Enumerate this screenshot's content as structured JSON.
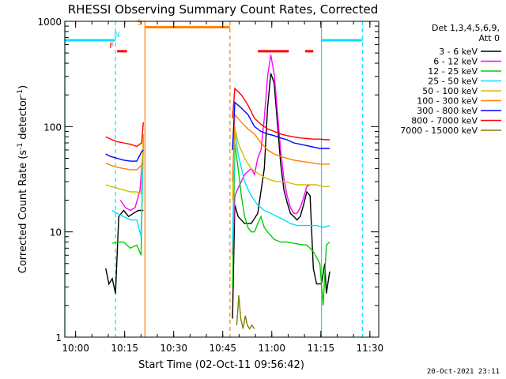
{
  "chart_data": {
    "type": "line",
    "title": "RHESSI Observing Summary Count Rates, Corrected",
    "xlabel": "Start Time (02-Oct-11 09:56:42)",
    "ylabel_main": "Corrected Count Rate (s",
    "ylabel_sup1": "-1",
    "ylabel_mid": " detector",
    "ylabel_sup2": "-1",
    "ylabel_end": ")",
    "x_unit": "minutes since 09:56:42",
    "xlim": [
      0,
      96
    ],
    "ylim": [
      1,
      1000
    ],
    "yscale": "log",
    "x_ticks": [
      {
        "pos": 3.3,
        "label": "10:00"
      },
      {
        "pos": 18.3,
        "label": "10:15"
      },
      {
        "pos": 33.3,
        "label": "10:30"
      },
      {
        "pos": 48.3,
        "label": "10:45"
      },
      {
        "pos": 63.3,
        "label": "11:00"
      },
      {
        "pos": 78.3,
        "label": "11:15"
      },
      {
        "pos": 93.3,
        "label": "11:30"
      }
    ],
    "y_ticks": [
      {
        "value": 1,
        "label": "1"
      },
      {
        "value": 10,
        "label": "10"
      },
      {
        "value": 100,
        "label": "100"
      },
      {
        "value": 1000,
        "label": "1000"
      }
    ],
    "legend_header": [
      "Det 1,3,4,5,6,9,",
      "Att 0"
    ],
    "legend_position": "right",
    "flags": [
      {
        "label": "N",
        "color": "#00e0ff",
        "segments": [
          [
            0,
            15.5
          ],
          [
            78.5,
            91
          ]
        ],
        "y_value": 660
      },
      {
        "label": "S",
        "color": "#ff8000",
        "segments": [
          [
            24.5,
            50.5
          ]
        ],
        "y_value": 880
      },
      {
        "label": "F",
        "color": "#ff0000",
        "segments": [
          [
            16,
            19
          ],
          [
            59,
            68.5
          ],
          [
            73.5,
            76
          ]
        ],
        "y_value": 520
      }
    ],
    "vlines": [
      {
        "x": 0,
        "color": "#00e0ff",
        "style": "solid"
      },
      {
        "x": 15.5,
        "color": "#00e0ff",
        "style": "dashed"
      },
      {
        "x": 24.5,
        "color": "#ff8000",
        "style": "solid"
      },
      {
        "x": 50.5,
        "color": "#ff8000",
        "style": "dashed"
      },
      {
        "x": 78.5,
        "color": "#00e0ff",
        "style": "solid"
      },
      {
        "x": 91,
        "color": "#00e0ff",
        "style": "dashed"
      }
    ],
    "series": [
      {
        "name": "3 - 6 keV",
        "color": "#000000",
        "values": [
          [
            12.5,
            4.5
          ],
          [
            13.5,
            3.2
          ],
          [
            14.5,
            3.6
          ],
          [
            15.5,
            2.6
          ],
          [
            16.5,
            14
          ],
          [
            18,
            16
          ],
          [
            19.5,
            14
          ],
          [
            21,
            15
          ],
          [
            22.5,
            16
          ],
          [
            24,
            16
          ],
          [
            51.3,
            1.5
          ],
          [
            52,
            18
          ],
          [
            53,
            14
          ],
          [
            55,
            12
          ],
          [
            57,
            12
          ],
          [
            59,
            15
          ],
          [
            61,
            40
          ],
          [
            62,
            150
          ],
          [
            63,
            320
          ],
          [
            64,
            260
          ],
          [
            65,
            110
          ],
          [
            66,
            45
          ],
          [
            67,
            25
          ],
          [
            68,
            19
          ],
          [
            69,
            15
          ],
          [
            70,
            14
          ],
          [
            71,
            13
          ],
          [
            72,
            14
          ],
          [
            73,
            18
          ],
          [
            74,
            24
          ],
          [
            75,
            22
          ],
          [
            76,
            4.5
          ],
          [
            77,
            3.2
          ],
          [
            78.5,
            3.2
          ],
          [
            79.5,
            5
          ],
          [
            80,
            2.6
          ],
          [
            81,
            4.2
          ]
        ]
      },
      {
        "name": "6 - 12 keV",
        "color": "#ff00ff",
        "values": [
          [
            17,
            20
          ],
          [
            18.5,
            17
          ],
          [
            20,
            16
          ],
          [
            21.5,
            17
          ],
          [
            23,
            25
          ],
          [
            24,
            70
          ],
          [
            51.3,
            6
          ],
          [
            52,
            22
          ],
          [
            53,
            26
          ],
          [
            55,
            35
          ],
          [
            57,
            40
          ],
          [
            58,
            35
          ],
          [
            59,
            50
          ],
          [
            60,
            60
          ],
          [
            61,
            120
          ],
          [
            62,
            300
          ],
          [
            63,
            480
          ],
          [
            64,
            320
          ],
          [
            65,
            140
          ],
          [
            66,
            60
          ],
          [
            67,
            32
          ],
          [
            68,
            22
          ],
          [
            69,
            17
          ],
          [
            70,
            15
          ],
          [
            71,
            15
          ],
          [
            72,
            17
          ],
          [
            73,
            21
          ],
          [
            74,
            27
          ],
          [
            75,
            28
          ]
        ]
      },
      {
        "name": "12 - 25 keV",
        "color": "#00d000",
        "values": [
          [
            14.5,
            7.8
          ],
          [
            16,
            8
          ],
          [
            18,
            8
          ],
          [
            20,
            7
          ],
          [
            22,
            7.5
          ],
          [
            23.3,
            6
          ],
          [
            24,
            80
          ],
          [
            51.3,
            3
          ],
          [
            52,
            70
          ],
          [
            53,
            40
          ],
          [
            54,
            22
          ],
          [
            55,
            14
          ],
          [
            56,
            11
          ],
          [
            57,
            10
          ],
          [
            58,
            10
          ],
          [
            59,
            12
          ],
          [
            60,
            14
          ],
          [
            61,
            11
          ],
          [
            62,
            10
          ],
          [
            64,
            8.5
          ],
          [
            66,
            8
          ],
          [
            68,
            8
          ],
          [
            70,
            7.8
          ],
          [
            72,
            7.6
          ],
          [
            74,
            7.5
          ],
          [
            76,
            6.5
          ],
          [
            78,
            5
          ],
          [
            79,
            2
          ],
          [
            80,
            7.5
          ],
          [
            81,
            8
          ]
        ]
      },
      {
        "name": "25 - 50 keV",
        "color": "#00e0ff",
        "values": [
          [
            14.5,
            16
          ],
          [
            16,
            15
          ],
          [
            18,
            14
          ],
          [
            20,
            13
          ],
          [
            22,
            13
          ],
          [
            23.3,
            9
          ],
          [
            24,
            70
          ],
          [
            51.3,
            8
          ],
          [
            52,
            90
          ],
          [
            53,
            55
          ],
          [
            55,
            30
          ],
          [
            57,
            22
          ],
          [
            59,
            18
          ],
          [
            61,
            16
          ],
          [
            63,
            15
          ],
          [
            65,
            14
          ],
          [
            67,
            13
          ],
          [
            69,
            12
          ],
          [
            71,
            11.5
          ],
          [
            73,
            11.5
          ],
          [
            75,
            11.5
          ],
          [
            77,
            11.5
          ],
          [
            79,
            11
          ],
          [
            81,
            11.5
          ]
        ]
      },
      {
        "name": "50 - 100 keV",
        "color": "#d0c000",
        "values": [
          [
            12.5,
            28
          ],
          [
            14,
            27
          ],
          [
            16,
            26
          ],
          [
            18,
            25
          ],
          [
            20,
            24
          ],
          [
            22,
            24
          ],
          [
            23.3,
            23
          ],
          [
            24,
            85
          ],
          [
            51.3,
            20
          ],
          [
            52,
            100
          ],
          [
            53,
            70
          ],
          [
            55,
            50
          ],
          [
            57,
            40
          ],
          [
            59,
            36
          ],
          [
            61,
            33
          ],
          [
            63,
            31
          ],
          [
            65,
            30
          ],
          [
            67,
            30
          ],
          [
            69,
            29
          ],
          [
            71,
            28
          ],
          [
            73,
            28
          ],
          [
            75,
            28
          ],
          [
            77,
            28
          ],
          [
            79,
            27
          ],
          [
            81,
            27
          ]
        ]
      },
      {
        "name": "100 - 300 keV",
        "color": "#ff8000",
        "values": [
          [
            12.5,
            45
          ],
          [
            14,
            43
          ],
          [
            16,
            41
          ],
          [
            18,
            40
          ],
          [
            20,
            39
          ],
          [
            22,
            39
          ],
          [
            23.5,
            43
          ],
          [
            24,
            45
          ],
          [
            51.3,
            30
          ],
          [
            52,
            130
          ],
          [
            54,
            110
          ],
          [
            56,
            95
          ],
          [
            58,
            85
          ],
          [
            60,
            70
          ],
          [
            62,
            60
          ],
          [
            64,
            55
          ],
          [
            66,
            52
          ],
          [
            68,
            50
          ],
          [
            70,
            48
          ],
          [
            72,
            47
          ],
          [
            74,
            46
          ],
          [
            76,
            45
          ],
          [
            78,
            44
          ],
          [
            80,
            44
          ],
          [
            81,
            44
          ]
        ]
      },
      {
        "name": "300 - 800 keV",
        "color": "#0000ff",
        "values": [
          [
            12.5,
            55
          ],
          [
            14,
            52
          ],
          [
            16,
            50
          ],
          [
            18,
            48
          ],
          [
            20,
            47
          ],
          [
            22,
            47
          ],
          [
            23.5,
            58
          ],
          [
            24,
            60
          ],
          [
            51.3,
            60
          ],
          [
            52,
            170
          ],
          [
            54,
            150
          ],
          [
            56,
            130
          ],
          [
            58,
            100
          ],
          [
            60,
            90
          ],
          [
            62,
            85
          ],
          [
            64,
            82
          ],
          [
            66,
            78
          ],
          [
            68,
            75
          ],
          [
            70,
            70
          ],
          [
            72,
            68
          ],
          [
            74,
            66
          ],
          [
            76,
            64
          ],
          [
            78,
            62
          ],
          [
            80,
            62
          ],
          [
            81,
            62
          ]
        ]
      },
      {
        "name": "800 - 7000 keV",
        "color": "#ff0000",
        "values": [
          [
            12.5,
            80
          ],
          [
            14,
            76
          ],
          [
            16,
            72
          ],
          [
            18,
            70
          ],
          [
            20,
            68
          ],
          [
            22,
            65
          ],
          [
            23.5,
            70
          ],
          [
            24,
            110
          ],
          [
            51.3,
            120
          ],
          [
            52,
            230
          ],
          [
            54,
            200
          ],
          [
            56,
            160
          ],
          [
            58,
            120
          ],
          [
            60,
            105
          ],
          [
            62,
            95
          ],
          [
            64,
            90
          ],
          [
            66,
            85
          ],
          [
            68,
            82
          ],
          [
            70,
            80
          ],
          [
            72,
            78
          ],
          [
            74,
            77
          ],
          [
            76,
            76
          ],
          [
            78,
            76
          ],
          [
            80,
            75
          ],
          [
            81,
            75
          ]
        ]
      },
      {
        "name": "7000 - 15000 keV",
        "color": "#808000",
        "values": [
          [
            52.6,
            1.3
          ],
          [
            53.2,
            2.5
          ],
          [
            53.8,
            1.5
          ],
          [
            54.5,
            1.2
          ],
          [
            55.2,
            1.6
          ],
          [
            55.8,
            1.3
          ],
          [
            56.5,
            1.2
          ],
          [
            57.2,
            1.3
          ],
          [
            58,
            1.2
          ]
        ]
      }
    ],
    "timestamp": "20-Oct-2021 23:11"
  }
}
